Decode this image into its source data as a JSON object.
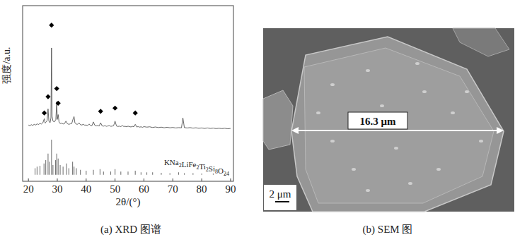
{
  "chart_data": {
    "type": "line",
    "title": "(a) XRD 图谱",
    "x_label": "2θ/(°)",
    "y_label": "强度/a.u.",
    "xlim": [
      18,
      91
    ],
    "xticks": [
      20,
      30,
      40,
      50,
      60,
      70,
      80,
      90
    ],
    "ylim": [
      -4,
      104
    ],
    "tick_labels": "x",
    "series": [
      {
        "type": "line",
        "color": "#555555",
        "x": [
          20,
          20.5,
          21,
          21.5,
          22,
          22.5,
          23,
          23.5,
          24,
          24.5,
          25,
          25.5,
          25.8,
          26.2,
          26.5,
          26.8,
          27.1,
          27.5,
          27.8,
          28.0,
          28.2,
          28.5,
          29,
          29.5,
          29.8,
          30.0,
          30.3,
          30.6,
          31,
          31.5,
          32,
          32.5,
          33,
          33.5,
          34,
          34.5,
          35,
          35.5,
          35.8,
          36.1,
          36.5,
          37,
          37.5,
          38,
          38.5,
          39,
          39.5,
          40,
          40.5,
          41,
          41.5,
          42,
          42.5,
          43,
          43.5,
          44,
          44.5,
          45,
          45.5,
          46,
          46.5,
          47,
          47.5,
          48,
          48.5,
          49,
          49.5,
          50,
          50.5,
          51,
          51.5,
          52,
          52.5,
          53,
          53.5,
          54,
          54.5,
          55,
          55.5,
          56,
          56.5,
          57,
          57.5,
          58,
          58.5,
          59,
          59.5,
          60,
          61,
          62,
          63,
          64,
          65,
          66,
          67,
          68,
          69,
          70,
          71,
          72,
          73,
          73.5,
          74,
          75,
          76,
          77,
          78,
          79,
          80,
          81,
          82,
          83,
          84,
          85,
          86,
          87,
          88,
          89,
          90
        ],
        "values": [
          30.6,
          30.2,
          30.8,
          30.4,
          31.0,
          30.6,
          31.3,
          30.9,
          31.6,
          31.2,
          32.0,
          34.5,
          31.8,
          32.5,
          33.5,
          40.5,
          33.0,
          32.0,
          35.0,
          78.0,
          36.0,
          33.0,
          32.5,
          34.0,
          45.0,
          34.0,
          37.0,
          32.5,
          31.5,
          31.8,
          31.2,
          31.5,
          33.0,
          31.4,
          31.0,
          31.3,
          31.5,
          34.5,
          35.8,
          32.0,
          31.2,
          31.0,
          32.0,
          30.8,
          30.6,
          31.0,
          30.5,
          30.6,
          30.3,
          31.2,
          30.4,
          30.2,
          32.5,
          30.4,
          30.1,
          30.3,
          30.0,
          32.0,
          30.1,
          29.9,
          30.2,
          29.8,
          30.0,
          30.3,
          29.8,
          29.9,
          30.2,
          33.0,
          30.0,
          29.7,
          29.9,
          29.6,
          30.3,
          29.7,
          29.8,
          29.5,
          29.9,
          29.6,
          29.4,
          29.8,
          29.5,
          31.0,
          29.4,
          29.6,
          29.3,
          29.5,
          29.2,
          29.6,
          29.3,
          29.5,
          29.1,
          29.4,
          29.0,
          29.3,
          28.9,
          29.2,
          28.9,
          29.1,
          28.8,
          29.0,
          28.9,
          35.0,
          29.0,
          28.8,
          29.0,
          28.7,
          28.9,
          28.6,
          28.8,
          28.5,
          28.8,
          28.5,
          28.7,
          28.4,
          28.6,
          28.4,
          28.6,
          28.3,
          28.5
        ]
      },
      {
        "type": "bar",
        "name": "KNa2LiFe2Ti2Si8O24",
        "color": "#777777",
        "x": [
          22.3,
          23.0,
          24.0,
          25.4,
          26.0,
          26.8,
          27.3,
          28.0,
          28.5,
          29.4,
          29.8,
          30.3,
          31.0,
          32.0,
          33.2,
          34.0,
          35.3,
          35.8,
          36.6,
          38,
          40,
          42.5,
          44.8,
          46,
          48.5,
          50,
          52,
          54.5,
          57,
          59,
          61,
          63,
          66,
          69,
          72,
          74,
          77,
          80,
          84,
          88
        ],
        "values": [
          4,
          5,
          5.5,
          7,
          9,
          13,
          8,
          21.6,
          6,
          9,
          13,
          10,
          6,
          5,
          7,
          4,
          8,
          5,
          4,
          3,
          2.5,
          3,
          3.5,
          2,
          2,
          3.5,
          2,
          2,
          2.5,
          1.5,
          1.5,
          1.5,
          1.2,
          1,
          1.5,
          1,
          1,
          0.8,
          0.8,
          0.6
        ]
      },
      {
        "type": "scatter",
        "marker": "diamond",
        "color": "#000000",
        "x": [
          25.5,
          26.8,
          28.0,
          29.8,
          30.3,
          45.0,
          50.0,
          57.0
        ],
        "values": [
          38,
          48,
          92,
          53,
          44,
          39,
          41,
          38
        ]
      }
    ]
  },
  "sem_image": {
    "caption": "(b) SEM 图",
    "measure_label": "16.3 μm",
    "scale_label": "2 μm"
  }
}
